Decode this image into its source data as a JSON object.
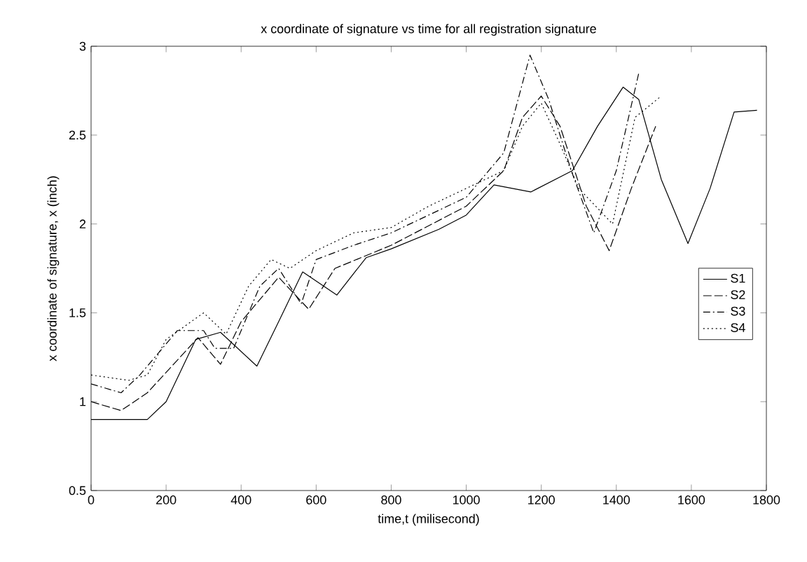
{
  "chart_data": {
    "type": "line",
    "title": "x coordinate of signature vs time for all registration signature",
    "xlabel": "time,t (milisecond)",
    "ylabel": "x coordinate of signature, x (inch)",
    "xlim": [
      0,
      1800
    ],
    "xticks": [
      0,
      200,
      400,
      600,
      800,
      1000,
      1200,
      1400,
      1600,
      1800
    ],
    "ylim": [
      0.5,
      3
    ],
    "yticks": [
      0.5,
      1,
      1.5,
      2,
      2.5,
      3
    ],
    "grid": false,
    "legend": "right",
    "marker": "none",
    "series": [
      {
        "name": "S1",
        "color": "#000000",
        "line_style": "solid",
        "x": [
          0,
          150,
          200,
          279,
          345,
          442,
          500,
          564,
          655,
          733,
          800,
          927,
          1000,
          1074,
          1172,
          1283,
          1350,
          1418,
          1460,
          1520,
          1591,
          1650,
          1714,
          1775
        ],
        "values": [
          0.9,
          0.9,
          1.0,
          1.35,
          1.39,
          1.2,
          1.45,
          1.73,
          1.6,
          1.81,
          1.86,
          1.97,
          2.05,
          2.22,
          2.18,
          2.3,
          2.55,
          2.77,
          2.7,
          2.25,
          1.89,
          2.2,
          2.63,
          2.64
        ]
      },
      {
        "name": "S2",
        "color": "#000000",
        "line_style": "dashed",
        "x": [
          0,
          80,
          150,
          285,
          345,
          400,
          500,
          580,
          650,
          800,
          1000,
          1100,
          1150,
          1200,
          1250,
          1320,
          1381,
          1440,
          1505
        ],
        "values": [
          1.0,
          0.95,
          1.05,
          1.36,
          1.21,
          1.45,
          1.7,
          1.52,
          1.75,
          1.88,
          2.1,
          2.3,
          2.6,
          2.72,
          2.55,
          2.1,
          1.85,
          2.2,
          2.55
        ]
      },
      {
        "name": "S3",
        "color": "#000000",
        "line_style": "dashdot",
        "x": [
          0,
          80,
          130,
          230,
          300,
          330,
          380,
          450,
          500,
          560,
          600,
          700,
          800,
          1000,
          1100,
          1170,
          1220,
          1280,
          1340,
          1400,
          1460
        ],
        "values": [
          1.1,
          1.05,
          1.15,
          1.4,
          1.4,
          1.3,
          1.3,
          1.65,
          1.75,
          1.55,
          1.8,
          1.88,
          1.95,
          2.15,
          2.4,
          2.95,
          2.7,
          2.3,
          1.95,
          2.3,
          2.85
        ]
      },
      {
        "name": "S4",
        "color": "#000000",
        "line_style": "dotted",
        "x": [
          0,
          100,
          150,
          200,
          300,
          360,
          420,
          480,
          530,
          600,
          700,
          800,
          900,
          1000,
          1100,
          1150,
          1200,
          1250,
          1300,
          1390,
          1450,
          1520
        ],
        "values": [
          1.15,
          1.12,
          1.15,
          1.35,
          1.5,
          1.38,
          1.65,
          1.8,
          1.75,
          1.85,
          1.95,
          1.98,
          2.1,
          2.2,
          2.3,
          2.55,
          2.68,
          2.45,
          2.2,
          2.0,
          2.6,
          2.72
        ]
      }
    ]
  }
}
